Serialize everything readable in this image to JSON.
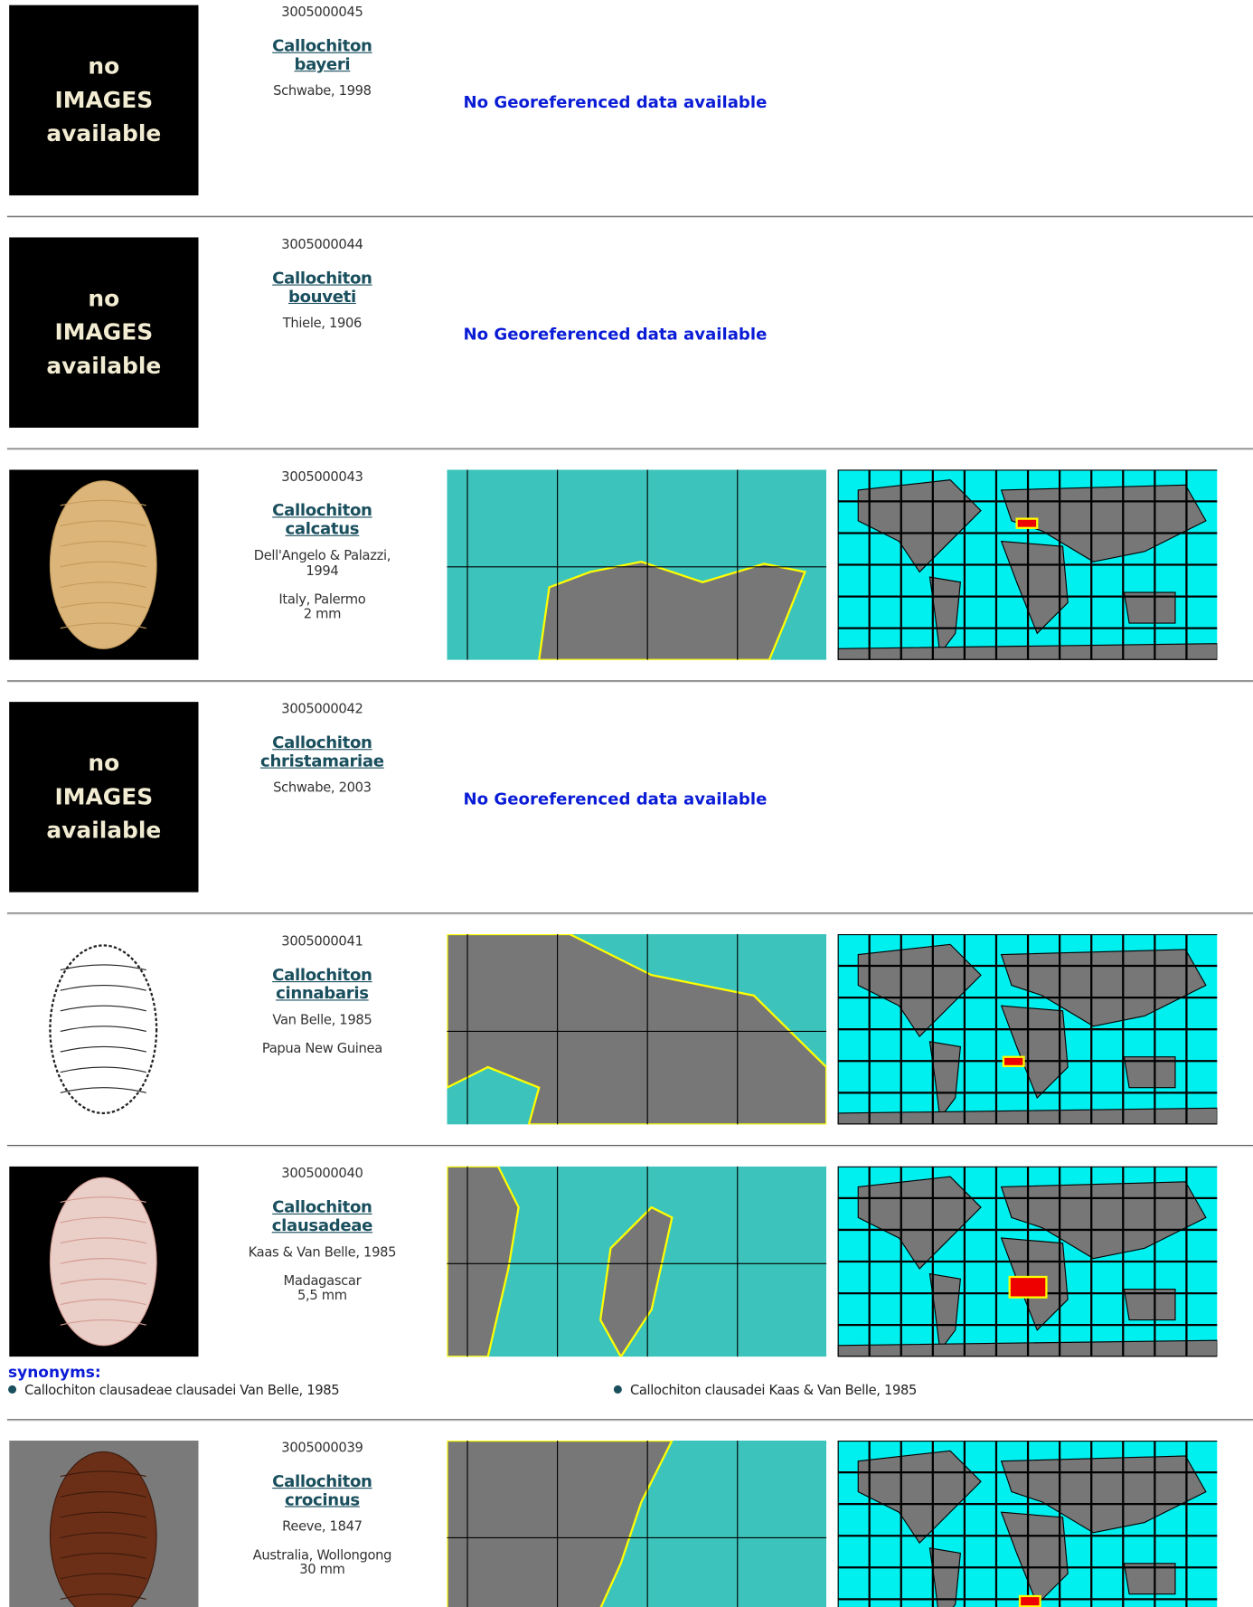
{
  "no_images_text": [
    "no",
    "IMAGES",
    "available"
  ],
  "no_georef_text": "No Georeferenced data available",
  "synonyms_label": "synonyms:",
  "entries": [
    {
      "id": "3005000045",
      "genus": "Callochiton",
      "species": "bayeri",
      "author": "Schwabe, 1998",
      "has_image": false,
      "georef": false
    },
    {
      "id": "3005000044",
      "genus": "Callochiton",
      "species": "bouveti",
      "author": "Thiele, 1906",
      "has_image": false,
      "georef": false
    },
    {
      "id": "3005000043",
      "genus": "Callochiton",
      "species": "calcatus",
      "author": "Dell'Angelo & Palazzi, 1994",
      "locality": "Italy, Palermo",
      "size": "2 mm",
      "has_image": true,
      "georef": true
    },
    {
      "id": "3005000042",
      "genus": "Callochiton",
      "species": "christamariae",
      "author": "Schwabe, 2003",
      "has_image": false,
      "georef": false
    },
    {
      "id": "3005000041",
      "genus": "Callochiton",
      "species": "cinnabaris",
      "author": "Van Belle, 1985",
      "locality": "Papua New Guinea",
      "has_image": true,
      "georef": true
    },
    {
      "id": "3005000040",
      "genus": "Callochiton",
      "species": "clausadeae",
      "author": "Kaas & Van Belle, 1985",
      "locality": "Madagascar",
      "size": "5,5 mm",
      "has_image": true,
      "georef": true,
      "synonyms": [
        "Callochiton clausadeae clausadei Van Belle, 1985",
        "Callochiton clausadei Kaas & Van Belle, 1985"
      ]
    },
    {
      "id": "3005000039",
      "genus": "Callochiton",
      "species": "crocinus",
      "author": "Reeve, 1847",
      "locality": "Australia, Wollongong",
      "size": "30 mm",
      "has_image": true,
      "georef": true
    }
  ]
}
